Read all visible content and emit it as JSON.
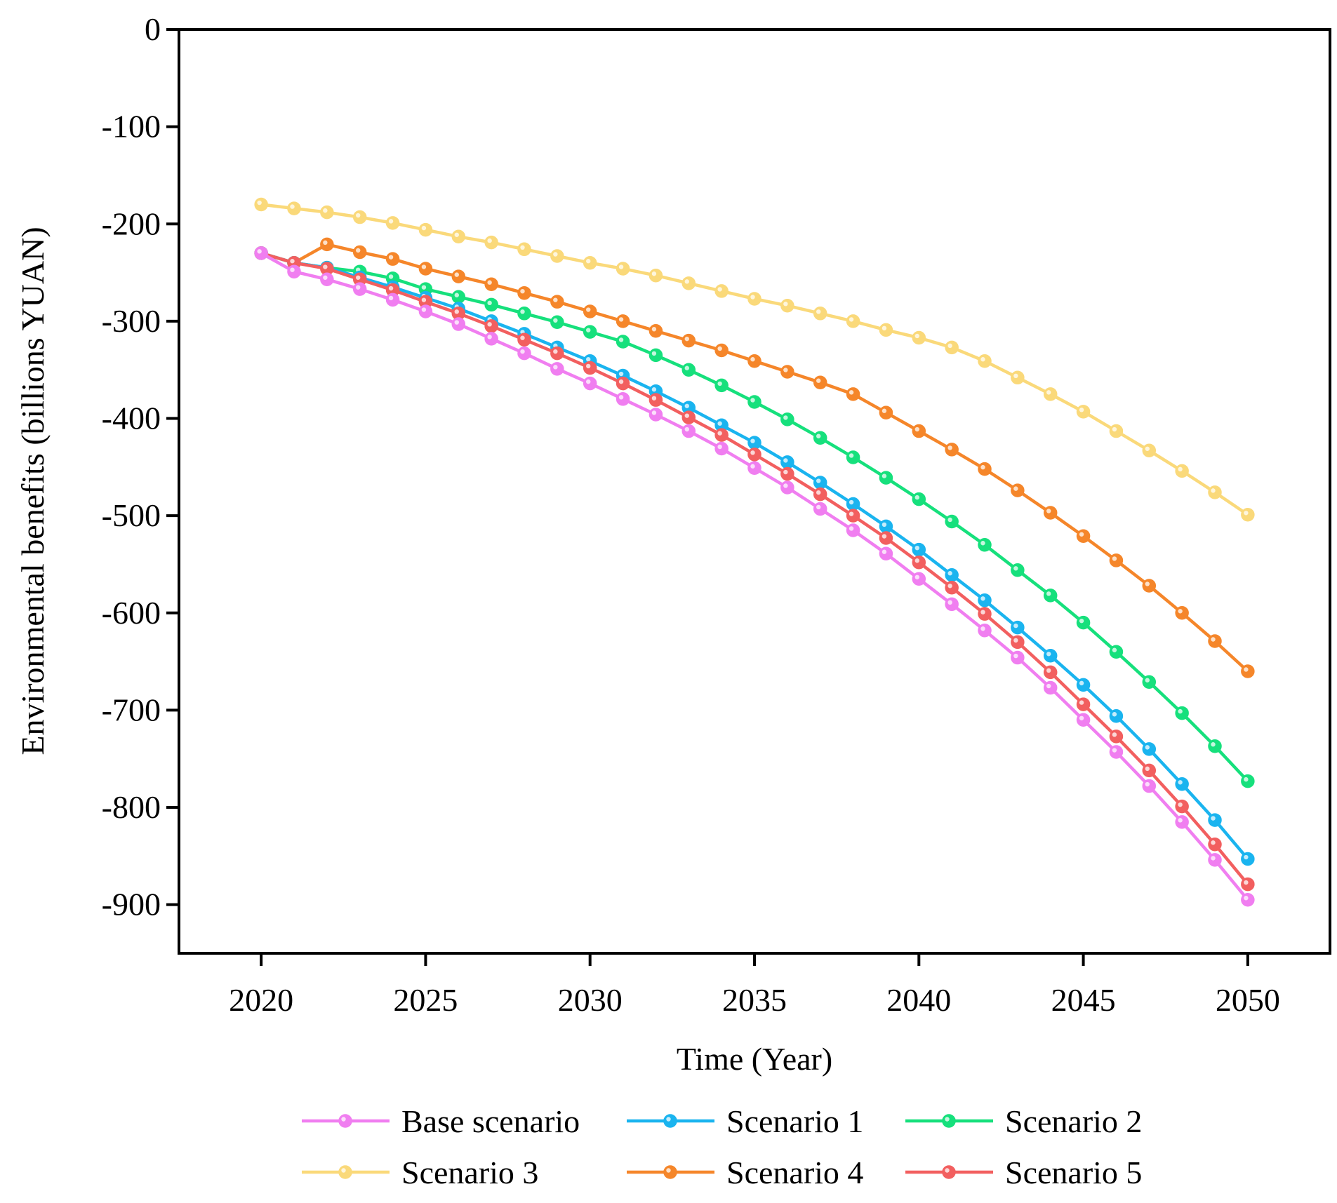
{
  "chart_data": {
    "type": "line",
    "title": "",
    "xlabel": "Time (Year)",
    "ylabel": "Environmental benefits (billions YUAN)",
    "xlim": [
      2017.5,
      2052.5
    ],
    "ylim": [
      -950,
      0
    ],
    "xticks": [
      2020,
      2025,
      2030,
      2035,
      2040,
      2045,
      2050
    ],
    "yticks": [
      0,
      -100,
      -200,
      -300,
      -400,
      -500,
      -600,
      -700,
      -800,
      -900
    ],
    "x": [
      2020,
      2021,
      2022,
      2023,
      2024,
      2025,
      2026,
      2027,
      2028,
      2029,
      2030,
      2031,
      2032,
      2033,
      2034,
      2035,
      2036,
      2037,
      2038,
      2039,
      2040,
      2041,
      2042,
      2043,
      2044,
      2045,
      2046,
      2047,
      2048,
      2049,
      2050
    ],
    "series": [
      {
        "name": "Base scenario",
        "color": "#f07ef0",
        "values": [
          -230,
          -249,
          -257,
          -267,
          -278,
          -290,
          -303,
          -318,
          -333,
          -349,
          -364,
          -380,
          -396,
          -413,
          -431,
          -451,
          -471,
          -493,
          -515,
          -539,
          -565,
          -591,
          -618,
          -646,
          -677,
          -710,
          -743,
          -778,
          -815,
          -854,
          -895
        ]
      },
      {
        "name": "Scenario 1",
        "color": "#1ab4ef",
        "values": [
          -230,
          -240,
          -245,
          -255,
          -265,
          -276,
          -287,
          -300,
          -313,
          -327,
          -341,
          -356,
          -372,
          -389,
          -407,
          -425,
          -445,
          -466,
          -488,
          -511,
          -535,
          -561,
          -587,
          -615,
          -644,
          -674,
          -706,
          -740,
          -776,
          -813,
          -853
        ]
      },
      {
        "name": "Scenario 2",
        "color": "#16e07c",
        "values": [
          -230,
          -240,
          -245,
          -249,
          -256,
          -267,
          -275,
          -283,
          -292,
          -301,
          -311,
          -321,
          -335,
          -350,
          -366,
          -383,
          -401,
          -420,
          -440,
          -461,
          -483,
          -506,
          -530,
          -556,
          -582,
          -610,
          -640,
          -671,
          -703,
          -737,
          -773
        ]
      },
      {
        "name": "Scenario 3",
        "color": "#fad97a",
        "values": [
          -180,
          -184,
          -188,
          -193,
          -199,
          -206,
          -213,
          -219,
          -226,
          -233,
          -240,
          -246,
          -253,
          -261,
          -269,
          -277,
          -284,
          -292,
          -300,
          -309,
          -317,
          -327,
          -341,
          -358,
          -375,
          -393,
          -413,
          -433,
          -454,
          -476,
          -499
        ]
      },
      {
        "name": "Scenario 4",
        "color": "#f5862a",
        "values": [
          -230,
          -240,
          -221,
          -229,
          -236,
          -246,
          -254,
          -262,
          -271,
          -280,
          -290,
          -300,
          -310,
          -320,
          -330,
          -341,
          -352,
          -363,
          -375,
          -394,
          -413,
          -432,
          -452,
          -474,
          -497,
          -521,
          -546,
          -572,
          -600,
          -629,
          -660
        ]
      },
      {
        "name": "Scenario 5",
        "color": "#f25f5f",
        "values": [
          -230,
          -240,
          -246,
          -257,
          -268,
          -280,
          -292,
          -305,
          -319,
          -333,
          -348,
          -364,
          -381,
          -399,
          -417,
          -437,
          -457,
          -478,
          -500,
          -523,
          -548,
          -574,
          -601,
          -630,
          -661,
          -694,
          -727,
          -762,
          -799,
          -838,
          -879
        ]
      }
    ]
  }
}
